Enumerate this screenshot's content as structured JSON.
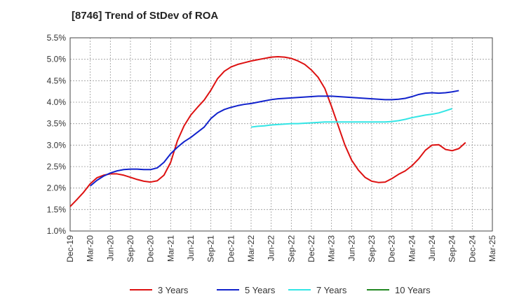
{
  "chart_data": {
    "type": "line",
    "title": "[8746]  Trend of StDev of ROA",
    "xlabel": "",
    "ylabel": "",
    "x_tick_labels": [
      "Dec-19",
      "Mar-20",
      "Jun-20",
      "Sep-20",
      "Dec-20",
      "Mar-21",
      "Jun-21",
      "Sep-21",
      "Dec-21",
      "Mar-22",
      "Jun-22",
      "Sep-22",
      "Dec-22",
      "Mar-23",
      "Jun-23",
      "Sep-23",
      "Dec-23",
      "Mar-24",
      "Jun-24",
      "Sep-24",
      "Dec-24",
      "Mar-25"
    ],
    "y_tick_labels": [
      "1.0%",
      "1.5%",
      "2.0%",
      "2.5%",
      "3.0%",
      "3.5%",
      "4.0%",
      "4.5%",
      "5.0%",
      "5.5%"
    ],
    "ylim": [
      1.0,
      5.5
    ],
    "y_unit": "%",
    "grid": true,
    "legend_position": "bottom",
    "series": [
      {
        "name": "3 Years",
        "color": "#dd1111",
        "values": [
          1.57,
          1.73,
          1.9,
          2.1,
          2.24,
          2.3,
          2.33,
          2.33,
          2.3,
          2.25,
          2.2,
          2.16,
          2.14,
          2.17,
          2.3,
          2.6,
          3.1,
          3.45,
          3.7,
          3.88,
          4.05,
          4.28,
          4.55,
          4.72,
          4.82,
          4.88,
          4.92,
          4.96,
          4.99,
          5.02,
          5.05,
          5.06,
          5.05,
          5.02,
          4.96,
          4.88,
          4.75,
          4.58,
          4.32,
          3.9,
          3.45,
          3.0,
          2.65,
          2.42,
          2.25,
          2.16,
          2.13,
          2.14,
          2.22,
          2.32,
          2.4,
          2.52,
          2.68,
          2.88,
          3.0,
          3.01,
          2.9,
          2.87,
          2.92,
          3.06
        ]
      },
      {
        "name": "5 Years",
        "color": "#1122cc",
        "start_index": 3,
        "values": [
          2.05,
          2.18,
          2.28,
          2.35,
          2.4,
          2.43,
          2.44,
          2.44,
          2.43,
          2.43,
          2.47,
          2.6,
          2.8,
          2.95,
          3.08,
          3.18,
          3.3,
          3.42,
          3.62,
          3.75,
          3.83,
          3.88,
          3.92,
          3.95,
          3.97,
          4.0,
          4.03,
          4.06,
          4.08,
          4.09,
          4.1,
          4.11,
          4.12,
          4.13,
          4.14,
          4.14,
          4.14,
          4.13,
          4.12,
          4.11,
          4.1,
          4.09,
          4.08,
          4.07,
          4.06,
          4.06,
          4.07,
          4.09,
          4.13,
          4.18,
          4.21,
          4.22,
          4.21,
          4.22,
          4.24,
          4.27
        ]
      },
      {
        "name": "7 Years",
        "color": "#33e5e5",
        "start_index": 27,
        "values": [
          3.42,
          3.44,
          3.45,
          3.47,
          3.48,
          3.49,
          3.5,
          3.5,
          3.51,
          3.52,
          3.53,
          3.54,
          3.54,
          3.54,
          3.54,
          3.54,
          3.54,
          3.54,
          3.54,
          3.54,
          3.54,
          3.55,
          3.57,
          3.6,
          3.64,
          3.67,
          3.7,
          3.72,
          3.75,
          3.8,
          3.85
        ]
      },
      {
        "name": "10 Years",
        "color": "#228822",
        "values": []
      }
    ]
  }
}
